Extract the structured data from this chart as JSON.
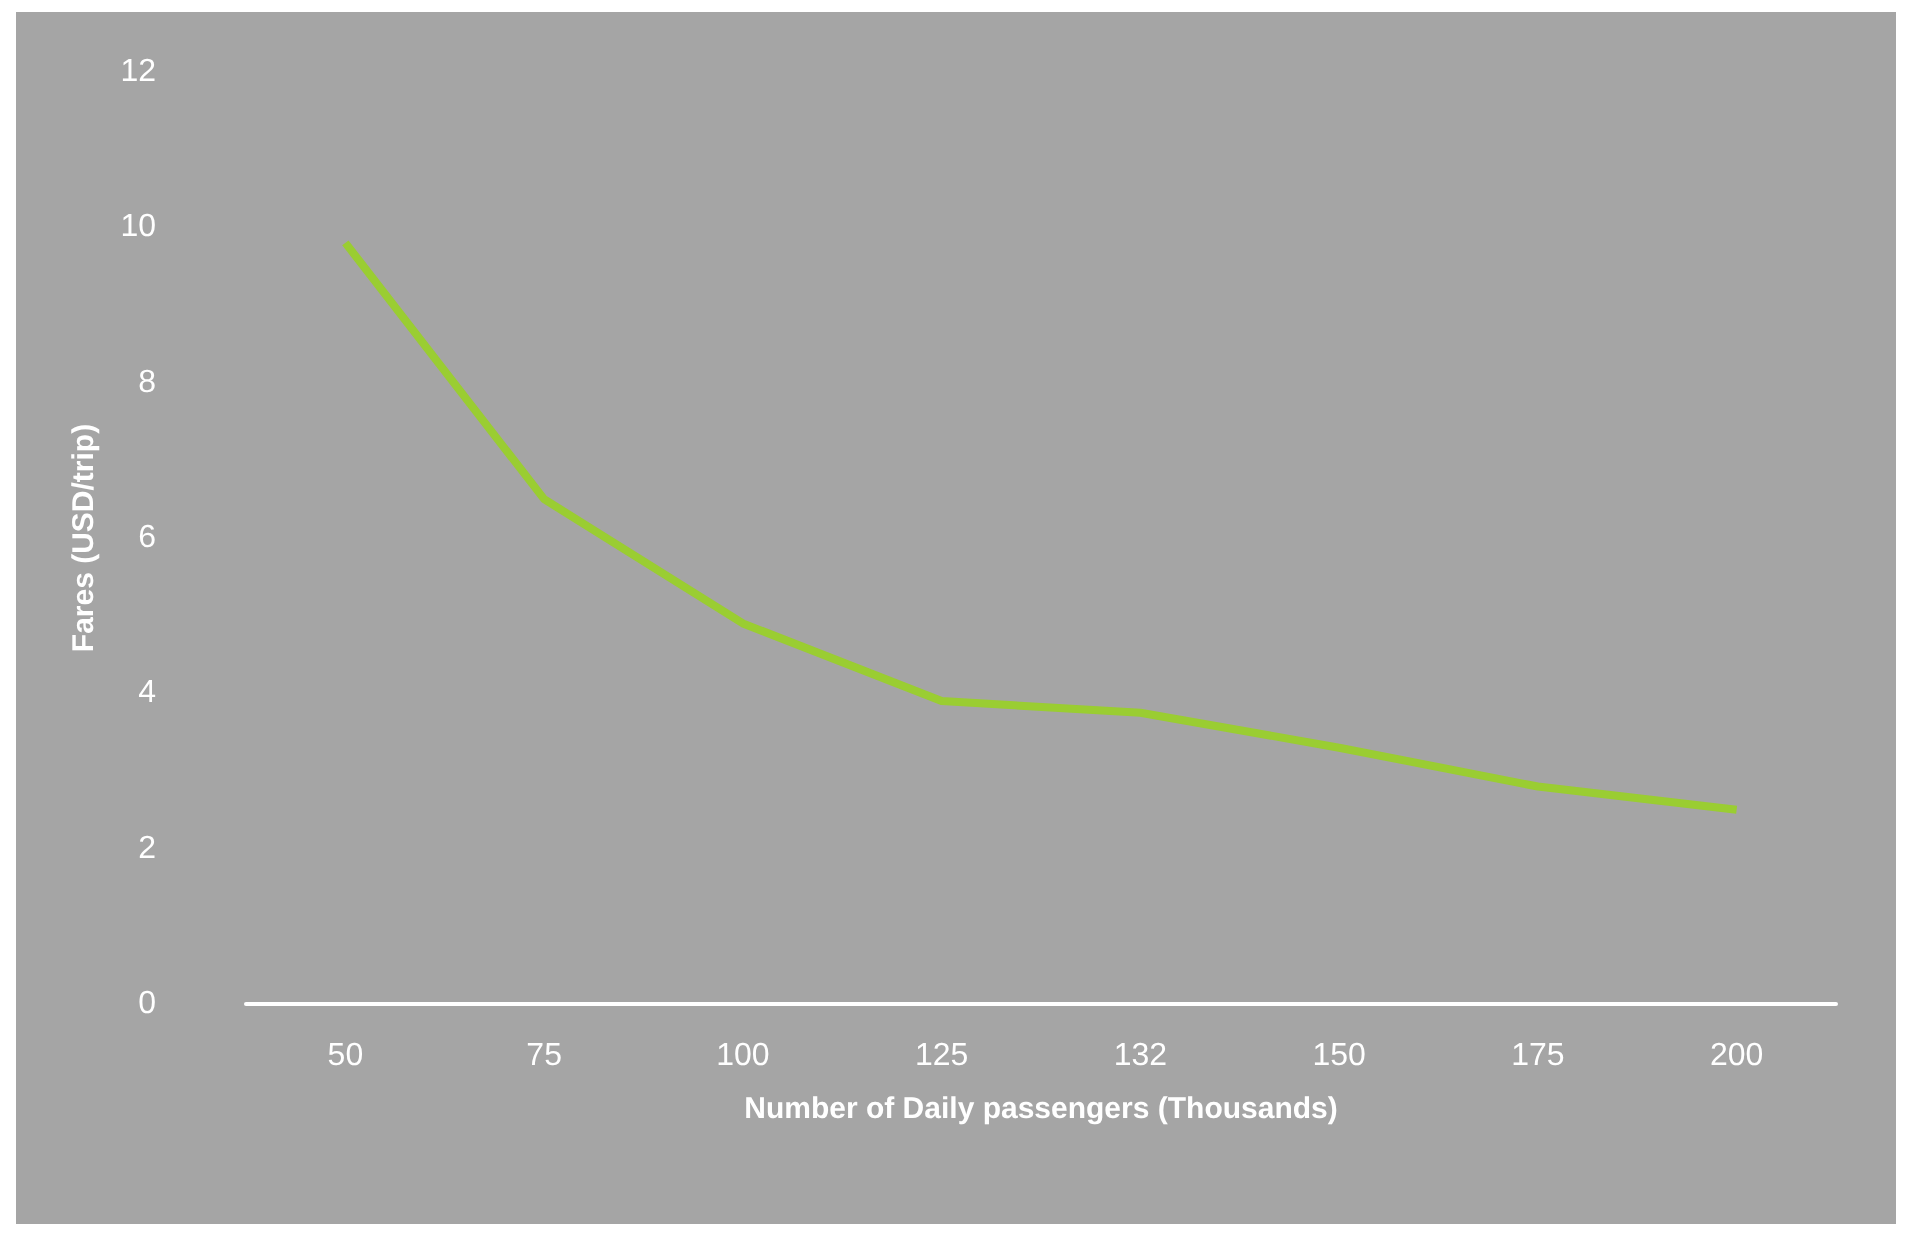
{
  "chart_data": {
    "type": "line",
    "xlabel": "Number of Daily passengers (Thousands)",
    "ylabel": "Fares (USD/trip)",
    "categories": [
      "50",
      "75",
      "100",
      "125",
      "132",
      "150",
      "175",
      "200"
    ],
    "series": [
      {
        "color": "#9acd32",
        "values": [
          9.8,
          6.5,
          4.9,
          3.9,
          3.75,
          3.3,
          2.8,
          2.5
        ]
      }
    ],
    "ylim": [
      0,
      12
    ],
    "yticks": [
      0,
      2,
      4,
      6,
      8,
      10,
      12
    ],
    "grid": false,
    "marker": "none",
    "line_style": "solid"
  }
}
